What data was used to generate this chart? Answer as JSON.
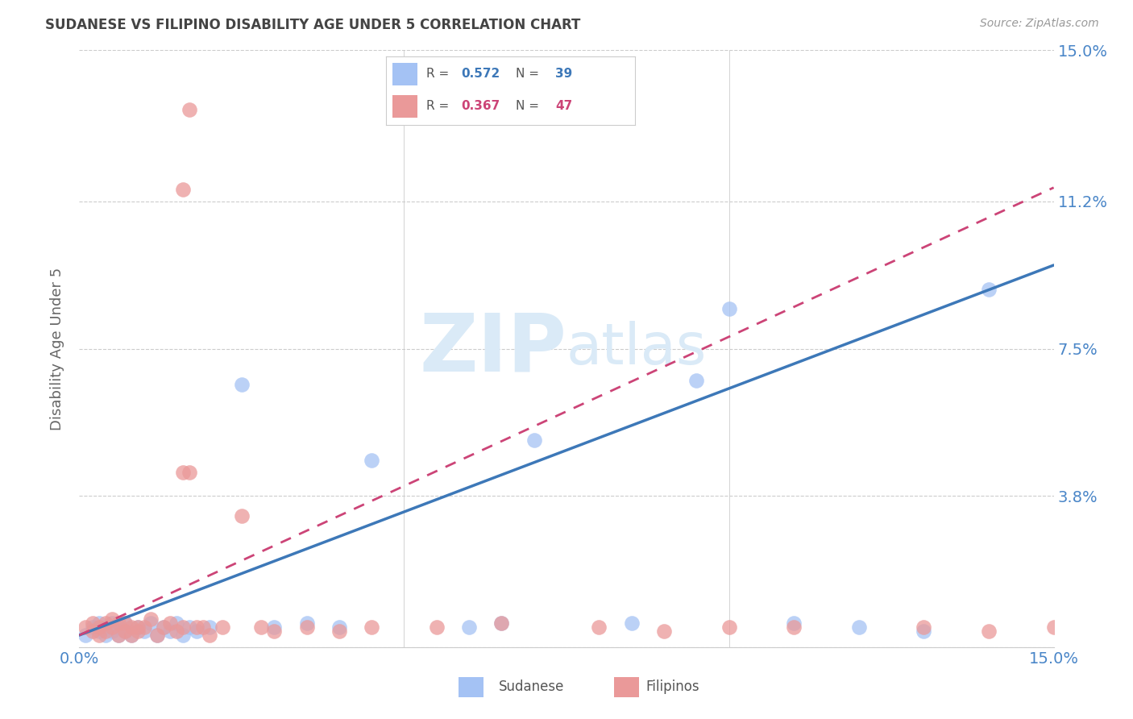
{
  "title": "SUDANESE VS FILIPINO DISABILITY AGE UNDER 5 CORRELATION CHART",
  "source": "Source: ZipAtlas.com",
  "ylabel": "Disability Age Under 5",
  "xlim": [
    0.0,
    0.15
  ],
  "ylim": [
    0.0,
    0.15
  ],
  "ytick_vals": [
    0.0,
    0.038,
    0.075,
    0.112,
    0.15
  ],
  "ytick_labels": [
    "",
    "3.8%",
    "7.5%",
    "11.2%",
    "15.0%"
  ],
  "xtick_vals": [
    0.0,
    0.05,
    0.1,
    0.15
  ],
  "xtick_labels": [
    "0.0%",
    "",
    "",
    "15.0%"
  ],
  "sudanese_R": 0.572,
  "sudanese_N": 39,
  "filipino_R": 0.367,
  "filipino_N": 47,
  "sudanese_dot_color": "#a4c2f4",
  "filipino_dot_color": "#ea9999",
  "sudanese_line_color": "#3d78b8",
  "filipino_line_color": "#cc4477",
  "tick_color": "#4a86c8",
  "watermark_color": "#daeaf7",
  "grid_color": "#cccccc",
  "title_color": "#444444",
  "source_color": "#999999",
  "legend_label_color": "#555555",
  "background_color": "#ffffff",
  "sudanese_x": [
    0.001,
    0.002,
    0.003,
    0.003,
    0.004,
    0.004,
    0.005,
    0.005,
    0.006,
    0.006,
    0.007,
    0.007,
    0.008,
    0.009,
    0.01,
    0.011,
    0.012,
    0.013,
    0.014,
    0.015,
    0.016,
    0.017,
    0.018,
    0.02,
    0.025,
    0.03,
    0.035,
    0.04,
    0.045,
    0.06,
    0.065,
    0.07,
    0.085,
    0.095,
    0.1,
    0.11,
    0.12,
    0.13,
    0.14
  ],
  "sudanese_y": [
    0.003,
    0.005,
    0.004,
    0.006,
    0.003,
    0.005,
    0.004,
    0.006,
    0.003,
    0.005,
    0.004,
    0.006,
    0.003,
    0.005,
    0.004,
    0.006,
    0.003,
    0.005,
    0.004,
    0.006,
    0.003,
    0.005,
    0.004,
    0.005,
    0.066,
    0.005,
    0.006,
    0.005,
    0.047,
    0.005,
    0.006,
    0.052,
    0.006,
    0.067,
    0.085,
    0.006,
    0.005,
    0.004,
    0.09
  ],
  "filipino_x": [
    0.001,
    0.002,
    0.002,
    0.003,
    0.003,
    0.004,
    0.004,
    0.005,
    0.005,
    0.006,
    0.006,
    0.007,
    0.007,
    0.008,
    0.008,
    0.009,
    0.009,
    0.01,
    0.011,
    0.012,
    0.013,
    0.014,
    0.015,
    0.016,
    0.017,
    0.018,
    0.019,
    0.02,
    0.022,
    0.025,
    0.028,
    0.03,
    0.035,
    0.04,
    0.045,
    0.055,
    0.065,
    0.08,
    0.09,
    0.1,
    0.11,
    0.13,
    0.14,
    0.15,
    0.016,
    0.016,
    0.017
  ],
  "filipino_y": [
    0.005,
    0.004,
    0.006,
    0.005,
    0.003,
    0.006,
    0.004,
    0.005,
    0.007,
    0.003,
    0.006,
    0.004,
    0.006,
    0.005,
    0.003,
    0.005,
    0.004,
    0.005,
    0.007,
    0.003,
    0.005,
    0.006,
    0.004,
    0.005,
    0.044,
    0.005,
    0.005,
    0.003,
    0.005,
    0.033,
    0.005,
    0.004,
    0.005,
    0.004,
    0.005,
    0.005,
    0.006,
    0.005,
    0.004,
    0.005,
    0.005,
    0.005,
    0.004,
    0.005,
    0.115,
    0.044,
    0.135
  ]
}
